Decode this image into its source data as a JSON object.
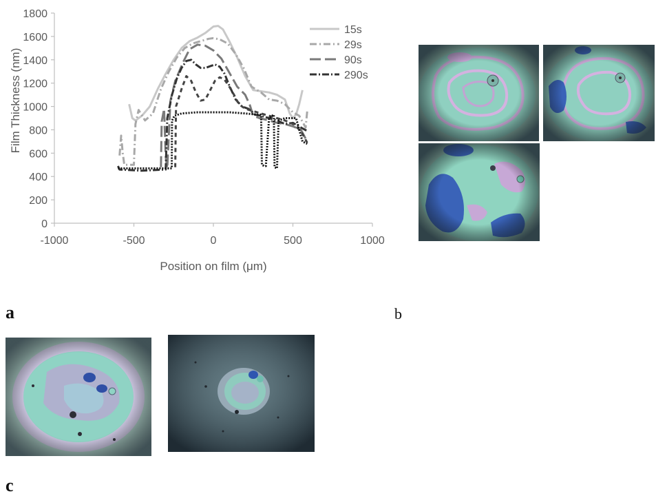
{
  "panel_labels": {
    "a": "a",
    "b": "b",
    "c": "c"
  },
  "chart_data": {
    "type": "line",
    "xlabel": "Position on film (μm)",
    "ylabel": "Film Thickness (nm)",
    "xlim": [
      -1000,
      1000
    ],
    "ylim": [
      0,
      1800
    ],
    "xticks": [
      -1000,
      -500,
      0,
      500,
      1000
    ],
    "yticks": [
      0,
      200,
      400,
      600,
      800,
      1000,
      1200,
      1400,
      1600,
      1800
    ],
    "grid": false,
    "legend_position": "top-right",
    "series": [
      {
        "name": "15s",
        "color": "#c8c8c8",
        "dash": "",
        "points": [
          [
            -530,
            1020
          ],
          [
            -510,
            900
          ],
          [
            -490,
            880
          ],
          [
            -450,
            920
          ],
          [
            -400,
            1000
          ],
          [
            -350,
            1150
          ],
          [
            -300,
            1280
          ],
          [
            -250,
            1400
          ],
          [
            -200,
            1500
          ],
          [
            -150,
            1560
          ],
          [
            -100,
            1590
          ],
          [
            -50,
            1630
          ],
          [
            0,
            1685
          ],
          [
            30,
            1690
          ],
          [
            60,
            1660
          ],
          [
            100,
            1560
          ],
          [
            150,
            1420
          ],
          [
            200,
            1260
          ],
          [
            250,
            1140
          ],
          [
            300,
            1130
          ],
          [
            350,
            1120
          ],
          [
            400,
            1100
          ],
          [
            450,
            1060
          ],
          [
            480,
            940
          ],
          [
            500,
            900
          ],
          [
            520,
            930
          ],
          [
            540,
            1020
          ],
          [
            560,
            1140
          ]
        ]
      },
      {
        "name": "29s",
        "color": "#a8a8a8",
        "dash": "10,4,2,4",
        "points": [
          [
            -590,
            580
          ],
          [
            -580,
            750
          ],
          [
            -570,
            600
          ],
          [
            -560,
            500
          ],
          [
            -500,
            500
          ],
          [
            -490,
            850
          ],
          [
            -470,
            970
          ],
          [
            -430,
            880
          ],
          [
            -380,
            940
          ],
          [
            -330,
            1150
          ],
          [
            -280,
            1300
          ],
          [
            -230,
            1420
          ],
          [
            -180,
            1500
          ],
          [
            -130,
            1540
          ],
          [
            -80,
            1560
          ],
          [
            -30,
            1580
          ],
          [
            0,
            1585
          ],
          [
            40,
            1575
          ],
          [
            90,
            1540
          ],
          [
            140,
            1450
          ],
          [
            190,
            1330
          ],
          [
            240,
            1170
          ],
          [
            300,
            1120
          ],
          [
            350,
            1060
          ],
          [
            400,
            1050
          ],
          [
            450,
            1020
          ],
          [
            500,
            950
          ],
          [
            540,
            920
          ],
          [
            580,
            820
          ],
          [
            590,
            960
          ]
        ]
      },
      {
        "name": "90s",
        "color": "#7a7a7a",
        "dash": "16,6",
        "points": [
          [
            -330,
            480
          ],
          [
            -325,
            870
          ],
          [
            -310,
            980
          ],
          [
            -300,
            570
          ],
          [
            -290,
            470
          ],
          [
            -270,
            1050
          ],
          [
            -240,
            1220
          ],
          [
            -190,
            1380
          ],
          [
            -150,
            1490
          ],
          [
            -100,
            1530
          ],
          [
            -50,
            1520
          ],
          [
            0,
            1480
          ],
          [
            50,
            1410
          ],
          [
            100,
            1290
          ],
          [
            150,
            1170
          ],
          [
            200,
            1100
          ],
          [
            230,
            1010
          ],
          [
            250,
            920
          ],
          [
            290,
            900
          ],
          [
            350,
            880
          ],
          [
            400,
            860
          ],
          [
            450,
            850
          ],
          [
            500,
            830
          ],
          [
            550,
            800
          ],
          [
            590,
            700
          ]
        ]
      },
      {
        "name": "290s",
        "color": "#333333",
        "dash": "10,3,2,3",
        "points": [
          [
            -600,
            490
          ],
          [
            -590,
            460
          ],
          [
            -450,
            450
          ],
          [
            -300,
            460
          ],
          [
            -290,
            900
          ],
          [
            -260,
            1100
          ],
          [
            -230,
            1240
          ],
          [
            -200,
            1330
          ],
          [
            -170,
            1390
          ],
          [
            -140,
            1400
          ],
          [
            -110,
            1360
          ],
          [
            -80,
            1330
          ],
          [
            -50,
            1330
          ],
          [
            -20,
            1345
          ],
          [
            10,
            1360
          ],
          [
            40,
            1340
          ],
          [
            70,
            1280
          ],
          [
            100,
            1180
          ],
          [
            140,
            1060
          ],
          [
            180,
            1000
          ],
          [
            220,
            980
          ],
          [
            240,
            960
          ],
          [
            260,
            930
          ],
          [
            300,
            920
          ],
          [
            350,
            900
          ],
          [
            400,
            880
          ],
          [
            450,
            850
          ],
          [
            500,
            860
          ],
          [
            550,
            820
          ],
          [
            590,
            790
          ]
        ]
      },
      {
        "name": "",
        "color": "#444444",
        "dash": "6,5",
        "points": [
          [
            -240,
            480
          ],
          [
            -235,
            1000
          ],
          [
            -200,
            1150
          ],
          [
            -170,
            1260
          ],
          [
            -140,
            1220
          ],
          [
            -110,
            1120
          ],
          [
            -80,
            1050
          ],
          [
            -50,
            1060
          ],
          [
            -20,
            1140
          ],
          [
            10,
            1220
          ],
          [
            40,
            1250
          ],
          [
            70,
            1230
          ],
          [
            100,
            1170
          ],
          [
            130,
            1100
          ],
          [
            160,
            1020
          ],
          [
            200,
            980
          ],
          [
            250,
            960
          ],
          [
            300,
            940
          ],
          [
            350,
            920
          ],
          [
            400,
            900
          ],
          [
            450,
            880
          ],
          [
            500,
            850
          ],
          [
            550,
            790
          ],
          [
            590,
            690
          ]
        ]
      },
      {
        "name": "",
        "color": "#111111",
        "dash": "2,2",
        "points": [
          [
            -600,
            470
          ],
          [
            -300,
            470
          ],
          [
            -262,
            470
          ],
          [
            -260,
            880
          ],
          [
            -245,
            920
          ],
          [
            -200,
            940
          ],
          [
            -100,
            950
          ],
          [
            0,
            950
          ],
          [
            100,
            950
          ],
          [
            200,
            940
          ],
          [
            280,
            930
          ],
          [
            300,
            930
          ],
          [
            305,
            500
          ],
          [
            320,
            490
          ],
          [
            330,
            490
          ],
          [
            350,
            900
          ],
          [
            380,
            930
          ],
          [
            385,
            480
          ],
          [
            400,
            470
          ],
          [
            410,
            880
          ],
          [
            450,
            900
          ],
          [
            520,
            900
          ],
          [
            560,
            700
          ],
          [
            590,
            680
          ]
        ]
      }
    ]
  },
  "micrographs": [
    {
      "label": "b-micrograph-1"
    },
    {
      "label": "b-micrograph-2"
    },
    {
      "label": "b-micrograph-3"
    },
    {
      "label": "c-micrograph-1"
    },
    {
      "label": "c-micrograph-2"
    }
  ]
}
